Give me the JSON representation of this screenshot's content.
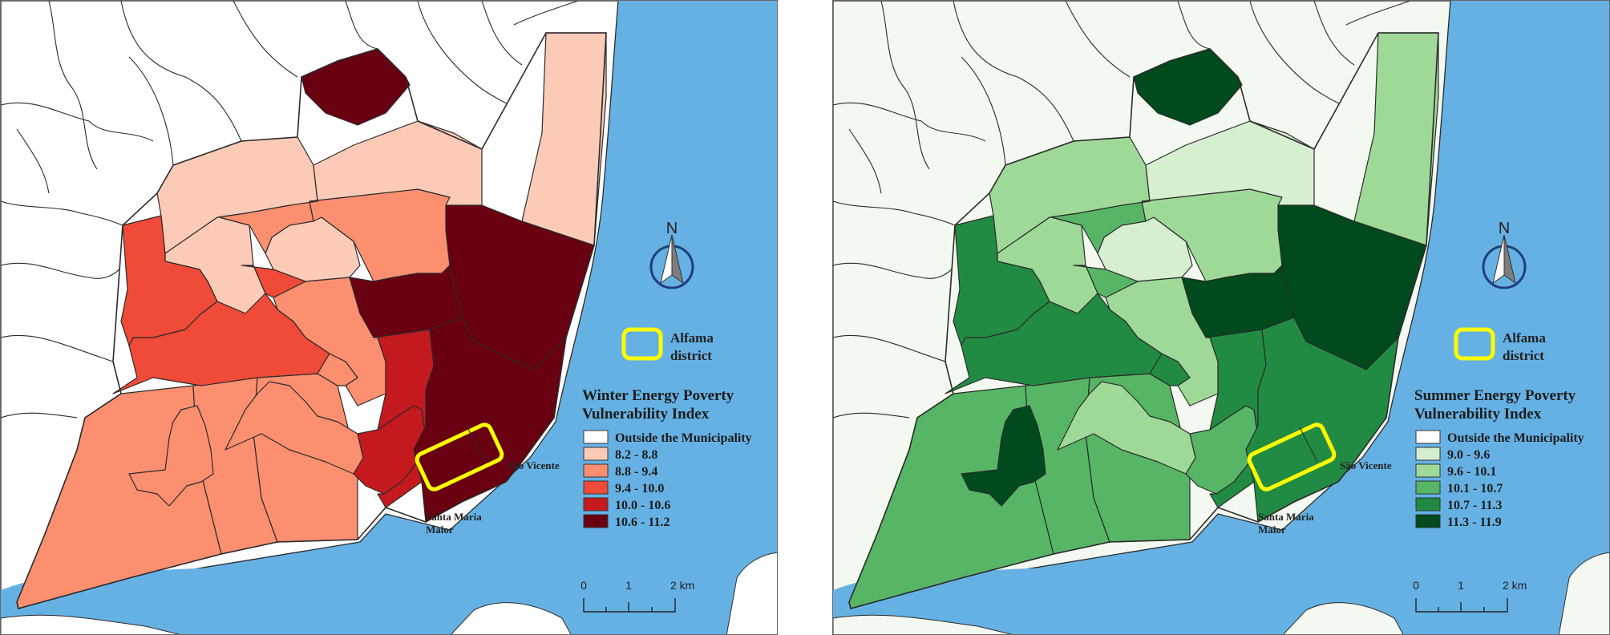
{
  "colors": {
    "water": "#66b1e4",
    "outside_land": "#ffffff",
    "border": "#2b2b2b",
    "highlight": "#ffff00"
  },
  "left_map": {
    "title": "Winter Energy Poverty Vulnerability Index",
    "title_lines": [
      "Winter Energy Poverty",
      "Vulnerability Index"
    ],
    "outside_color": "#ffffff",
    "legend": [
      {
        "label": "Outside the Municipality",
        "color": "#ffffff"
      },
      {
        "label": "8.2 - 8.8",
        "color": "#fccbb8"
      },
      {
        "label": "8.8 - 9.4",
        "color": "#fb8f70"
      },
      {
        "label": "9.4 - 10.0",
        "color": "#f04a38"
      },
      {
        "label": "10.0 - 10.6",
        "color": "#c41a1f"
      },
      {
        "label": "10.6 - 11.2",
        "color": "#680011"
      }
    ],
    "region_classes": [
      2,
      2,
      2,
      1,
      1,
      3,
      2,
      2,
      2,
      2,
      4,
      3,
      2,
      2,
      3,
      5,
      4,
      5,
      5,
      1,
      1,
      1,
      5
    ]
  },
  "right_map": {
    "title": "Summer Energy Poverty Vulnerability Index",
    "title_lines": [
      "Summer Energy Poverty",
      "Vulnerability Index"
    ],
    "outside_color": "#f3f9f0",
    "legend": [
      {
        "label": "Outside the Municipality",
        "color": "#ffffff"
      },
      {
        "label": "9.0 - 9.6",
        "color": "#d6efd0"
      },
      {
        "label": "9.6 - 10.1",
        "color": "#9fd998"
      },
      {
        "label": "10.1 - 10.7",
        "color": "#57b566"
      },
      {
        "label": "10.7 - 11.3",
        "color": "#228b43"
      },
      {
        "label": "11.3 - 11.9",
        "color": "#004a1e"
      }
    ],
    "region_classes": [
      3,
      3,
      3,
      2,
      1,
      4,
      4,
      2,
      5,
      2,
      3,
      4,
      3,
      2,
      3,
      5,
      4,
      4,
      5,
      2,
      1,
      2,
      5
    ]
  },
  "alfama_label_lines": [
    "Alfama",
    "district"
  ],
  "places": {
    "sao_vicente": "São Vicente",
    "santa_maria_lines": [
      "Santa Maria",
      "Maior"
    ]
  },
  "north_label": "N",
  "scale_bar": {
    "ticks": [
      "0",
      "1",
      "2 km"
    ]
  }
}
